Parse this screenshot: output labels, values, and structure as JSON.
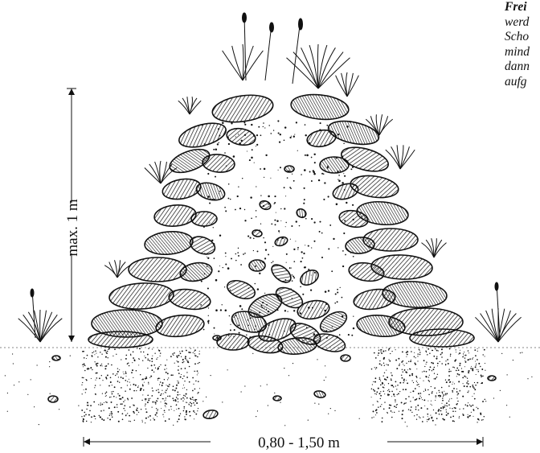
{
  "dimensions": {
    "height_label": "max. 1 m",
    "width_label": "0,80 - 1,50 m"
  },
  "side_note": {
    "lines": [
      "Frei",
      "werd",
      "Scho",
      "mind",
      "dann",
      "aufg"
    ]
  },
  "colors": {
    "ink": "#111111",
    "paper": "#ffffff"
  }
}
